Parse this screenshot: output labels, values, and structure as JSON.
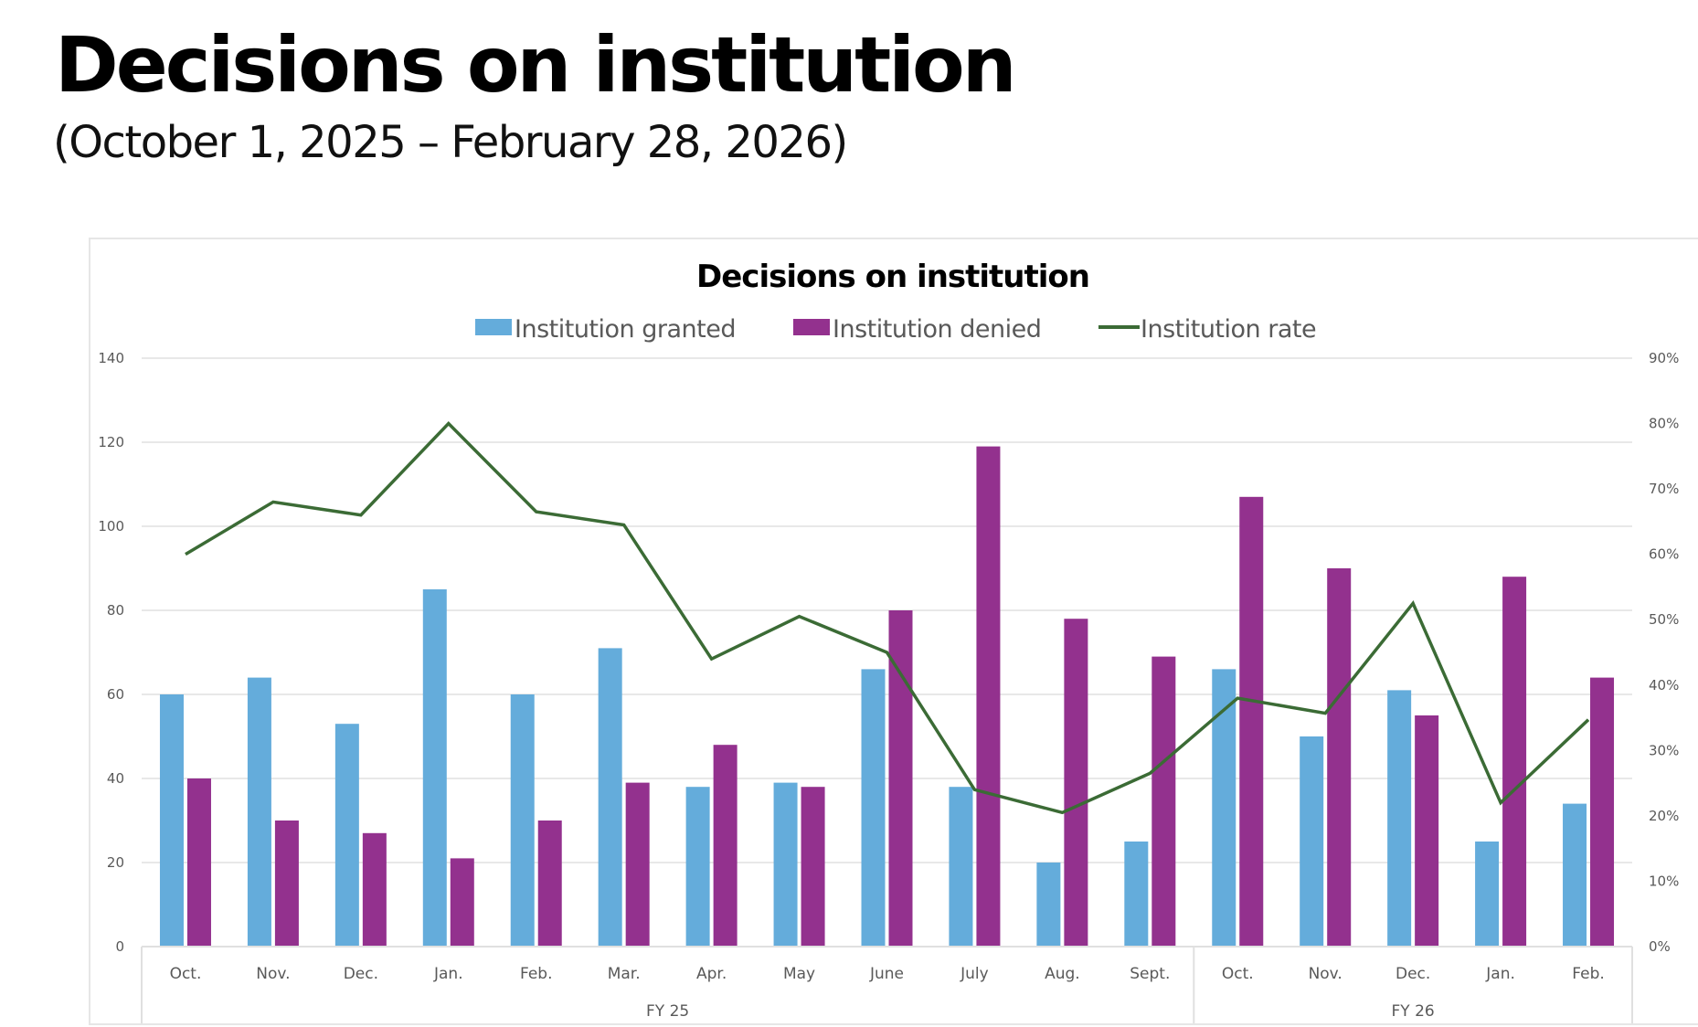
{
  "page": {
    "title": "Decisions on institution",
    "subtitle": "(October 1, 2025 – February 28, 2026)"
  },
  "colors": {
    "granted": "#64acdb",
    "denied": "#93318e",
    "rate": "#3b6b35",
    "grid": "#e8e8e8"
  },
  "chart_data": {
    "type": "bar",
    "title": "Decisions on institution",
    "xlabel": "",
    "ylabel": "",
    "legend_position": "top",
    "grid": true,
    "categories": [
      "Oct.",
      "Nov.",
      "Dec.",
      "Jan.",
      "Feb.",
      "Mar.",
      "Apr.",
      "May",
      "June",
      "July",
      "Aug.",
      "Sept.",
      "Oct.",
      "Nov.",
      "Dec.",
      "Jan.",
      "Feb."
    ],
    "category_groups": [
      {
        "label": "FY 25",
        "count": 12
      },
      {
        "label": "FY 26",
        "count": 5
      }
    ],
    "ylim": [
      0,
      140
    ],
    "yticks": [
      0,
      20,
      40,
      60,
      80,
      100,
      120,
      140
    ],
    "y2lim": [
      0,
      0.9
    ],
    "y2ticks": [
      "0%",
      "10%",
      "20%",
      "30%",
      "40%",
      "50%",
      "60%",
      "70%",
      "80%",
      "90%"
    ],
    "series": [
      {
        "name": "Institution granted",
        "type": "bar",
        "axis": "left",
        "values": [
          60,
          64,
          53,
          85,
          60,
          71,
          38,
          39,
          66,
          38,
          20,
          25,
          66,
          50,
          61,
          25,
          34
        ]
      },
      {
        "name": "Institution denied",
        "type": "bar",
        "axis": "left",
        "values": [
          40,
          30,
          27,
          21,
          30,
          39,
          48,
          38,
          80,
          119,
          78,
          69,
          107,
          90,
          55,
          88,
          64
        ]
      },
      {
        "name": "Institution rate",
        "type": "line",
        "axis": "right",
        "values": [
          0.6,
          0.68,
          0.66,
          0.8,
          0.665,
          0.645,
          0.44,
          0.505,
          0.45,
          0.24,
          0.205,
          0.265,
          0.38,
          0.357,
          0.525,
          0.22,
          0.347
        ]
      }
    ]
  }
}
